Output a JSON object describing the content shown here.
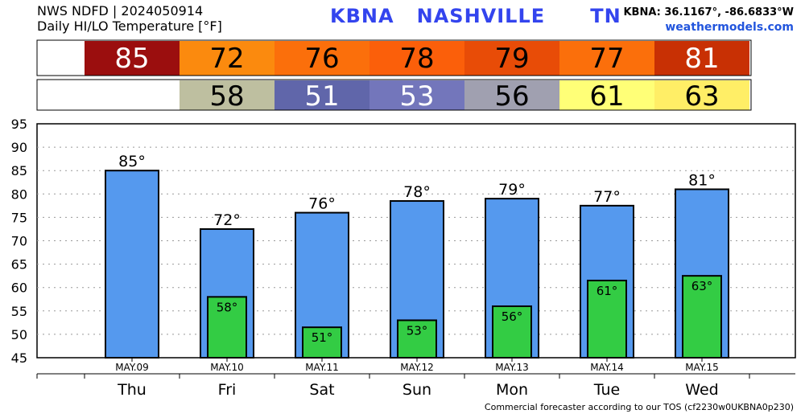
{
  "header": {
    "line1": "NWS NDFD | 2024050914",
    "line2": "Daily HI/LO Temperature [°F]",
    "station": "KBNA   NASHVILLE      TN",
    "coords": "KBNA: 36.1167°, -86.6833°W",
    "site": "weathermodels.com"
  },
  "footer": "Commercial forecaster according to our TOS (cf2230w0UKBNA0p230)",
  "colors": {
    "hi_bar": "#5599ee",
    "lo_bar": "#33cc44",
    "hi_strip": [
      "#9b0e0e",
      "#fb8a0e",
      "#fb6f0b",
      "#fb5f0a",
      "#e84c07",
      "#fb6f0b",
      "#c83004"
    ],
    "lo_strip": [
      "#bebfa0",
      "#6066aa",
      "#7376bb",
      "#a0a0b0",
      "#ffff77",
      "#ffee66"
    ]
  },
  "chart_data": {
    "type": "bar",
    "categories": [
      "Thu",
      "Fri",
      "Sat",
      "Sun",
      "Mon",
      "Tue",
      "Wed"
    ],
    "dates": [
      "MAY.09",
      "MAY.10",
      "MAY.11",
      "MAY.12",
      "MAY.13",
      "MAY.14",
      "MAY.15"
    ],
    "series": [
      {
        "values": [
          85,
          72.5,
          76,
          78.5,
          79,
          77.5,
          81
        ],
        "labels": [
          "85°",
          "72°",
          "76°",
          "78°",
          "79°",
          "77°",
          "81°"
        ]
      },
      {
        "values": [
          null,
          58,
          51.5,
          53,
          56,
          61.5,
          62.5
        ],
        "labels": [
          null,
          "58°",
          "51°",
          "53°",
          "56°",
          "61°",
          "63°"
        ]
      }
    ],
    "hi_strip": [
      "85",
      "72",
      "76",
      "78",
      "79",
      "77",
      "81"
    ],
    "lo_strip": [
      "",
      "58",
      "51",
      "53",
      "56",
      "61",
      "63"
    ],
    "yticks": [
      45,
      50,
      55,
      60,
      65,
      70,
      75,
      80,
      85,
      90,
      95
    ],
    "ylim": [
      45,
      95
    ],
    "grid": true
  }
}
